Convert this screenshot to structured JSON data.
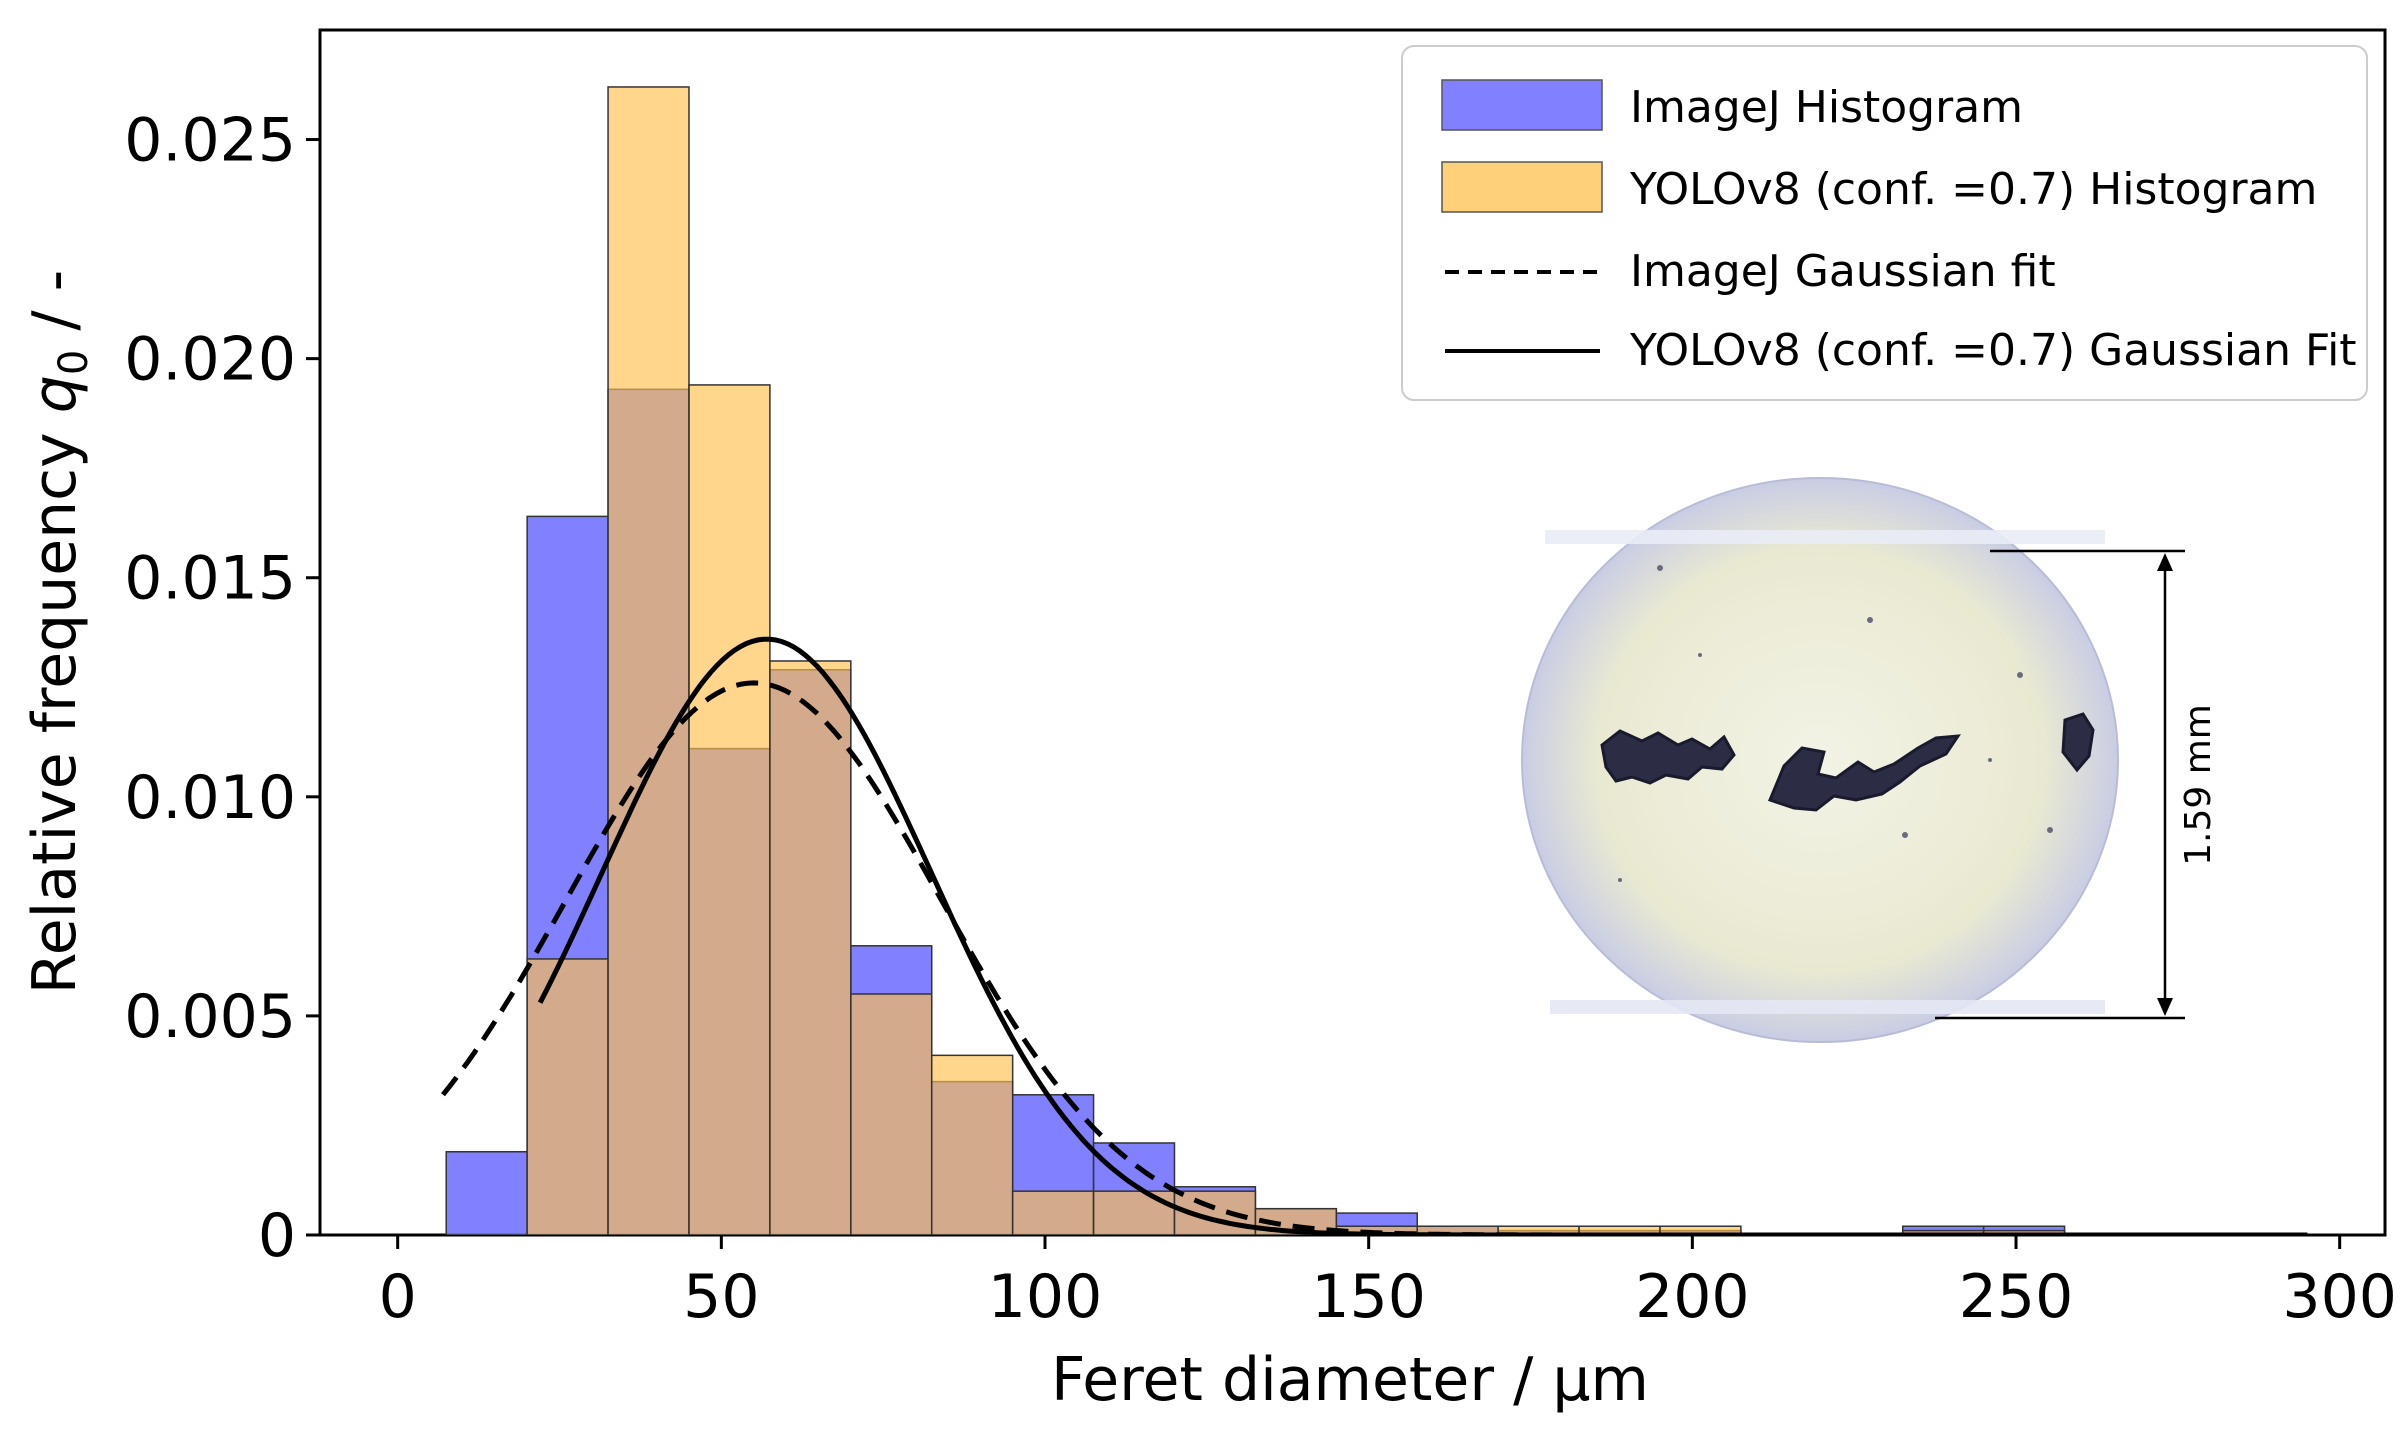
{
  "chart_data": {
    "type": "bar",
    "xlabel": "Feret diameter / µm",
    "ylabel_main": "Relative frequency ",
    "ylabel_symbol": "q",
    "ylabel_subscript": "0",
    "ylabel_suffix": " / -",
    "xlim": [
      -12,
      307
    ],
    "ylim": [
      0,
      0.0275
    ],
    "xticks": [
      {
        "value": 0,
        "label": "0"
      },
      {
        "value": 50,
        "label": "50"
      },
      {
        "value": 100,
        "label": "100"
      },
      {
        "value": 150,
        "label": "150"
      },
      {
        "value": 200,
        "label": "200"
      },
      {
        "value": 250,
        "label": "250"
      },
      {
        "value": 300,
        "label": "300"
      }
    ],
    "yticks": [
      {
        "value": 0,
        "label": "0"
      },
      {
        "value": 0.005,
        "label": "0.005"
      },
      {
        "value": 0.01,
        "label": "0.010"
      },
      {
        "value": 0.015,
        "label": "0.015"
      },
      {
        "value": 0.02,
        "label": "0.020"
      },
      {
        "value": 0.025,
        "label": "0.025"
      }
    ],
    "bin_edges": [
      7.5,
      20,
      32.5,
      45,
      57.5,
      70,
      82.5,
      95,
      107.5,
      120,
      132.5,
      145,
      157.5,
      170,
      182.5,
      195,
      207.5,
      220,
      232.5,
      245,
      257.5,
      270,
      282.5,
      295
    ],
    "series": [
      {
        "name": "ImageJ Histogram",
        "color": "#6b6bff",
        "values": [
          0.0019,
          0.0164,
          0.0193,
          0.0111,
          0.0129,
          0.0066,
          0.0035,
          0.0032,
          0.0021,
          0.0011,
          0.0006,
          0.0005,
          0.0002,
          0.0001,
          0.0001,
          0.0001,
          0,
          0,
          0.0002,
          0.0002,
          0,
          0,
          0
        ]
      },
      {
        "name": "YOLOv8 (conf. =0.7) Histogram",
        "color": "#ffc04d",
        "values": [
          0,
          0.0063,
          0.0262,
          0.0194,
          0.0131,
          0.0055,
          0.0041,
          0.001,
          0.001,
          0.001,
          0.0006,
          0.0002,
          0.0002,
          0.0002,
          0.0002,
          0.0002,
          0,
          0,
          0.0001,
          0.0001,
          0,
          0,
          0
        ]
      }
    ],
    "fits": [
      {
        "name": "ImageJ Gaussian fit",
        "style": "dashed",
        "mean": 55,
        "sigma": 29,
        "peak": 0.0126,
        "x_range": [
          7,
          295
        ]
      },
      {
        "name": "YOLOv8 (conf. =0.7) Gaussian Fit",
        "style": "solid",
        "mean": 57,
        "sigma": 25.5,
        "peak": 0.0136,
        "x_range": [
          22,
          295
        ]
      }
    ],
    "legend_position": "top-right",
    "grid": false
  },
  "inset": {
    "scale_label": "1.59 mm"
  }
}
